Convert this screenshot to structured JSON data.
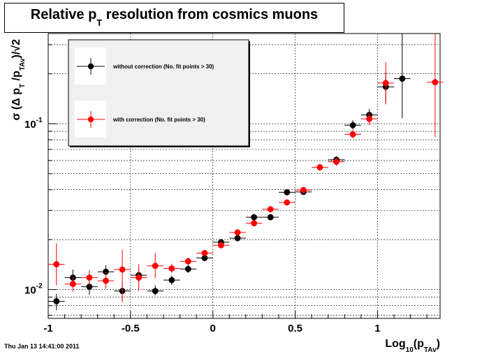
{
  "chart_data": {
    "type": "scatter",
    "title": "Relative p_T resolution from cosmics muons",
    "title_parts": {
      "main_a": "Relative p",
      "sub": "T",
      "main_b": " resolution from cosmics muons"
    },
    "xlabel": "Log10(pTAv)",
    "xlabel_parts": {
      "a": "Log",
      "sub1": "10",
      "b": "(p",
      "sub2": "TAv",
      "c": ")"
    },
    "ylabel": "σ(Δp_T/p_TAv)/√2",
    "ylabel_parts": {
      "a": "σ (Δ p",
      "sub1": "T",
      "b": " /p",
      "sub2": "TAv",
      "c": ")/",
      "root": "2"
    },
    "x_scale": "linear",
    "y_scale": "log",
    "xlim": [
      -1.0,
      1.38
    ],
    "ylim": [
      0.0067,
      0.35
    ],
    "x_ticks": [
      {
        "value": -1,
        "label": "-1"
      },
      {
        "value": -0.5,
        "label": "-0.5"
      },
      {
        "value": 0,
        "label": "0"
      },
      {
        "value": 0.5,
        "label": "0.5"
      },
      {
        "value": 1,
        "label": "1"
      }
    ],
    "y_tick_labels": [
      {
        "value": 0.01,
        "base": "10",
        "exp": "-2"
      },
      {
        "value": 0.1,
        "base": "10",
        "exp": "-1"
      }
    ],
    "grid": true,
    "legend_position": "top-left",
    "series": [
      {
        "name": "without correction (No. fit points > 30)",
        "color": "#000000",
        "points": [
          {
            "x": -0.95,
            "y": 0.0085,
            "xerr": 0.05,
            "ylo": 0.0075,
            "yhi": 0.0094
          },
          {
            "x": -0.85,
            "y": 0.0118,
            "xerr": 0.05,
            "ylo": 0.0107,
            "yhi": 0.0132
          },
          {
            "x": -0.75,
            "y": 0.0104,
            "xerr": 0.05,
            "ylo": 0.0093,
            "yhi": 0.0118
          },
          {
            "x": -0.65,
            "y": 0.0128,
            "xerr": 0.05,
            "ylo": 0.0117,
            "yhi": 0.014
          },
          {
            "x": -0.55,
            "y": 0.0098,
            "xerr": 0.05,
            "ylo": 0.0085,
            "yhi": 0.0112
          },
          {
            "x": -0.45,
            "y": 0.0122,
            "xerr": 0.05,
            "ylo": 0.0111,
            "yhi": 0.0134
          },
          {
            "x": -0.35,
            "y": 0.0098,
            "xerr": 0.05,
            "ylo": 0.0092,
            "yhi": 0.0106
          },
          {
            "x": -0.25,
            "y": 0.0114,
            "xerr": 0.05,
            "ylo": 0.0107,
            "yhi": 0.0121
          },
          {
            "x": -0.15,
            "y": 0.0133,
            "xerr": 0.05,
            "ylo": 0.0126,
            "yhi": 0.0141
          },
          {
            "x": -0.05,
            "y": 0.0155,
            "xerr": 0.05,
            "ylo": 0.0149,
            "yhi": 0.0161
          },
          {
            "x": 0.05,
            "y": 0.0193,
            "xerr": 0.05,
            "ylo": 0.0187,
            "yhi": 0.0199
          },
          {
            "x": 0.15,
            "y": 0.0204,
            "xerr": 0.05,
            "ylo": 0.0198,
            "yhi": 0.0211
          },
          {
            "x": 0.25,
            "y": 0.0273,
            "xerr": 0.05,
            "ylo": 0.0265,
            "yhi": 0.0282
          },
          {
            "x": 0.35,
            "y": 0.0273,
            "xerr": 0.05,
            "ylo": 0.0265,
            "yhi": 0.0282
          },
          {
            "x": 0.45,
            "y": 0.0386,
            "xerr": 0.05,
            "ylo": 0.0374,
            "yhi": 0.0398
          },
          {
            "x": 0.55,
            "y": 0.0388,
            "xerr": 0.05,
            "ylo": 0.0374,
            "yhi": 0.0402
          },
          {
            "x": 0.75,
            "y": 0.0606,
            "xerr": 0.05,
            "ylo": 0.0577,
            "yhi": 0.0637
          },
          {
            "x": 0.85,
            "y": 0.098,
            "xerr": 0.05,
            "ylo": 0.092,
            "yhi": 0.105
          },
          {
            "x": 0.95,
            "y": 0.113,
            "xerr": 0.05,
            "ylo": 0.104,
            "yhi": 0.123
          },
          {
            "x": 1.05,
            "y": 0.167,
            "xerr": 0.05,
            "ylo": 0.135,
            "yhi": 0.205
          },
          {
            "x": 1.15,
            "y": 0.187,
            "xerr": 0.05,
            "ylo": 0.108,
            "yhi": 0.35
          }
        ]
      },
      {
        "name": "with correction (No. fit points > 30)",
        "color": "#ff0000",
        "points": [
          {
            "x": -0.95,
            "y": 0.0142,
            "xerr": 0.05,
            "ylo": 0.0106,
            "yhi": 0.019
          },
          {
            "x": -0.85,
            "y": 0.0108,
            "xerr": 0.05,
            "ylo": 0.0097,
            "yhi": 0.012
          },
          {
            "x": -0.75,
            "y": 0.0118,
            "xerr": 0.05,
            "ylo": 0.0106,
            "yhi": 0.0131
          },
          {
            "x": -0.65,
            "y": 0.0113,
            "xerr": 0.05,
            "ylo": 0.0101,
            "yhi": 0.0127
          },
          {
            "x": -0.55,
            "y": 0.0132,
            "xerr": 0.05,
            "ylo": 0.0084,
            "yhi": 0.0173
          },
          {
            "x": -0.45,
            "y": 0.0118,
            "xerr": 0.05,
            "ylo": 0.0098,
            "yhi": 0.0142
          },
          {
            "x": -0.35,
            "y": 0.0139,
            "xerr": 0.05,
            "ylo": 0.0117,
            "yhi": 0.0166
          },
          {
            "x": -0.25,
            "y": 0.0134,
            "xerr": 0.05,
            "ylo": 0.0126,
            "yhi": 0.0143
          },
          {
            "x": -0.15,
            "y": 0.0148,
            "xerr": 0.05,
            "ylo": 0.014,
            "yhi": 0.0156
          },
          {
            "x": -0.05,
            "y": 0.0166,
            "xerr": 0.05,
            "ylo": 0.016,
            "yhi": 0.0173
          },
          {
            "x": 0.05,
            "y": 0.0185,
            "xerr": 0.05,
            "ylo": 0.0179,
            "yhi": 0.0192
          },
          {
            "x": 0.15,
            "y": 0.0221,
            "xerr": 0.05,
            "ylo": 0.0214,
            "yhi": 0.0228
          },
          {
            "x": 0.25,
            "y": 0.0251,
            "xerr": 0.05,
            "ylo": 0.0243,
            "yhi": 0.0259
          },
          {
            "x": 0.35,
            "y": 0.0305,
            "xerr": 0.05,
            "ylo": 0.0296,
            "yhi": 0.0315
          },
          {
            "x": 0.45,
            "y": 0.0335,
            "xerr": 0.05,
            "ylo": 0.0324,
            "yhi": 0.0347
          },
          {
            "x": 0.55,
            "y": 0.0398,
            "xerr": 0.05,
            "ylo": 0.0383,
            "yhi": 0.0414
          },
          {
            "x": 0.65,
            "y": 0.0546,
            "xerr": 0.05,
            "ylo": 0.052,
            "yhi": 0.0573
          },
          {
            "x": 0.75,
            "y": 0.059,
            "xerr": 0.05,
            "ylo": 0.0557,
            "yhi": 0.0624
          },
          {
            "x": 0.85,
            "y": 0.0863,
            "xerr": 0.05,
            "ylo": 0.0818,
            "yhi": 0.0912
          },
          {
            "x": 0.95,
            "y": 0.107,
            "xerr": 0.05,
            "ylo": 0.098,
            "yhi": 0.117
          },
          {
            "x": 1.05,
            "y": 0.176,
            "xerr": 0.05,
            "ylo": 0.131,
            "yhi": 0.235
          },
          {
            "x": 1.35,
            "y": 0.178,
            "xerr": 0.05,
            "ylo": 0.083,
            "yhi": 0.35
          }
        ]
      }
    ]
  },
  "timestamp": "Thu Jan 13 14:41:00 2011"
}
